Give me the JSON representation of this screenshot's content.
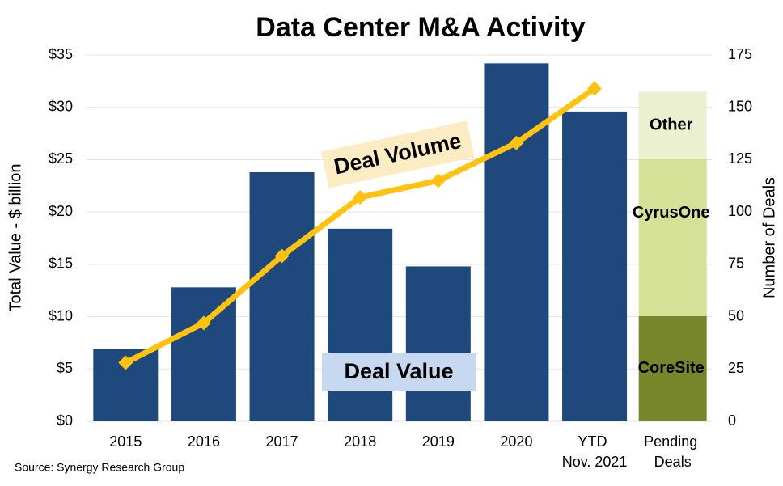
{
  "chart_data": {
    "type": "bar",
    "title": "Data Center M&A Activity",
    "y_label": "Total Value - $ billion",
    "y2_label": "Number of Deals",
    "source": "Source: Synergy Research Group",
    "categories": [
      "2015",
      "2016",
      "2017",
      "2018",
      "2019",
      "2020",
      "YTD Nov. 2021",
      "Pending Deals"
    ],
    "series": [
      {
        "name": "Deal Value",
        "type": "bar",
        "color": "#1f497d",
        "label_color": "#c6d9f0",
        "values": [
          6.9,
          12.8,
          23.8,
          18.4,
          14.8,
          34.2,
          29.6,
          null
        ]
      },
      {
        "name": "Deal Volume",
        "type": "line",
        "axis": "y2",
        "color": "#ffc20e",
        "label_color": "#fbecc4",
        "values": [
          28,
          47,
          79,
          107,
          115,
          133,
          159,
          null
        ]
      }
    ],
    "pending": [
      {
        "name": "CoreSite",
        "color": "#77862a",
        "value": 10.05
      },
      {
        "name": "CyrusOne",
        "color": "#d4e196",
        "value": 15.0
      },
      {
        "name": "Other",
        "color": "#ebf1d0",
        "value": 6.45
      }
    ],
    "ylim": [
      0,
      35
    ],
    "yticks": [
      {
        "value": 0,
        "label": "$0"
      },
      {
        "value": 5,
        "label": "$5"
      },
      {
        "value": 10,
        "label": "$10"
      },
      {
        "value": 15,
        "label": "$15"
      },
      {
        "value": 20,
        "label": "$20"
      },
      {
        "value": 25,
        "label": "$25"
      },
      {
        "value": 30,
        "label": "$30"
      },
      {
        "value": 35,
        "label": "$35"
      }
    ],
    "y2lim": [
      0,
      175
    ],
    "y2ticks": [
      0,
      25,
      50,
      75,
      100,
      125,
      150,
      175
    ],
    "grid": true
  }
}
